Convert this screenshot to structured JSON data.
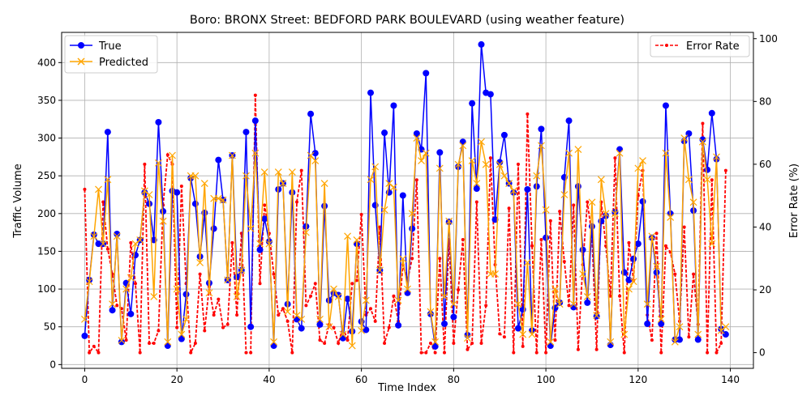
{
  "chart_data": {
    "type": "line",
    "title": "Boro: BRONX Street: BEDFORD PARK BOULEVARD (using weather feature)",
    "xlabel": "Time Index",
    "ylabel": "Traffic Volume",
    "y2label": "Error Rate (%)",
    "xlim": [
      -5,
      145
    ],
    "ylim": [
      -5,
      440
    ],
    "y2lim": [
      -5,
      102
    ],
    "x_ticks": [
      0,
      20,
      40,
      60,
      80,
      100,
      120,
      140
    ],
    "y_ticks": [
      0,
      50,
      100,
      150,
      200,
      250,
      300,
      350,
      400
    ],
    "y2_ticks": [
      0,
      20,
      40,
      60,
      80,
      100
    ],
    "grid": true,
    "legend_left": "top-left",
    "legend_right": "top-right",
    "colors": {
      "true": "#0000ff",
      "predicted": "#ffa500",
      "error": "#ff0000"
    },
    "series": [
      {
        "name": "True",
        "axis": "left",
        "values": [
          38,
          112,
          172,
          160,
          160,
          308,
          72,
          173,
          30,
          108,
          67,
          145,
          165,
          228,
          213,
          165,
          321,
          203,
          25,
          230,
          228,
          34,
          93,
          247,
          213,
          143,
          201,
          108,
          180,
          271,
          218,
          112,
          277,
          116,
          125,
          308,
          50,
          323,
          152,
          193,
          163,
          25,
          232,
          240,
          80,
          228,
          60,
          48,
          183,
          332,
          280,
          53,
          210,
          85,
          95,
          92,
          35,
          87,
          44,
          160,
          57,
          46,
          360,
          211,
          125,
          307,
          228,
          343,
          52,
          224,
          95,
          180,
          306,
          285,
          386,
          67,
          24,
          281,
          54,
          189,
          63,
          262,
          295,
          39,
          346,
          233,
          424,
          360,
          358,
          192,
          268,
          304,
          240,
          228,
          48,
          73,
          232,
          45,
          236,
          312,
          168,
          25,
          75,
          82,
          248,
          323,
          76,
          236,
          152,
          82,
          183,
          64,
          190,
          197,
          26,
          202,
          285,
          122,
          112,
          140,
          160,
          216,
          54,
          168,
          122,
          54,
          343,
          200,
          33,
          33,
          296,
          306,
          204,
          33,
          298,
          258,
          333,
          272,
          47,
          40
        ]
      },
      {
        "name": "Predicted",
        "values": [
          60,
          110,
          170,
          232,
          160,
          245,
          80,
          170,
          32,
          100,
          115,
          160,
          165,
          230,
          225,
          90,
          267,
          190,
          30,
          277,
          100,
          40,
          60,
          250,
          250,
          135,
          240,
          95,
          220,
          220,
          218,
          112,
          277,
          90,
          125,
          250,
          180,
          280,
          160,
          255,
          160,
          30,
          255,
          240,
          70,
          255,
          65,
          60,
          175,
          277,
          270,
          60,
          240,
          50,
          100,
          90,
          40,
          170,
          25,
          165,
          45,
          85,
          245,
          262,
          125,
          205,
          240,
          235,
          85,
          140,
          100,
          200,
          300,
          270,
          280,
          70,
          30,
          260,
          90,
          190,
          80,
          265,
          290,
          35,
          270,
          240,
          295,
          265,
          120,
          120,
          265,
          250,
          240,
          230,
          80,
          40,
          135,
          40,
          250,
          290,
          205,
          30,
          100,
          80,
          225,
          280,
          80,
          285,
          120,
          90,
          215,
          65,
          245,
          200,
          30,
          200,
          280,
          40,
          100,
          110,
          260,
          270,
          80,
          170,
          130,
          60,
          280,
          195,
          30,
          50,
          300,
          245,
          215,
          40,
          295,
          245,
          160,
          275,
          45,
          50
        ]
      },
      {
        "name": "Error Rate",
        "axis": "right",
        "values": [
          52,
          0,
          2,
          0,
          48,
          33,
          25,
          15,
          14,
          4,
          35,
          22,
          0,
          60,
          3,
          3,
          7,
          47,
          63,
          60,
          8,
          53,
          22,
          0,
          3,
          25,
          7,
          21,
          12,
          17,
          8,
          9,
          35,
          12,
          38,
          0,
          0,
          82,
          22,
          47,
          38,
          25,
          12,
          14,
          10,
          0,
          48,
          58,
          15,
          18,
          22,
          4,
          3,
          9,
          8,
          3,
          8,
          4,
          22,
          23,
          44,
          12,
          14,
          10,
          40,
          3,
          8,
          18,
          10,
          28,
          23,
          30,
          55,
          0,
          0,
          3,
          0,
          30,
          0,
          36,
          3,
          20,
          36,
          1,
          3,
          48,
          3,
          15,
          62,
          28,
          6,
          5,
          46,
          0,
          60,
          2,
          76,
          34,
          0,
          36,
          0,
          42,
          4,
          45,
          29,
          15,
          47,
          1,
          28,
          48,
          37,
          1,
          48,
          34,
          18,
          62,
          18,
          0,
          35,
          23,
          50,
          58,
          12,
          4,
          38,
          0,
          34,
          32,
          25,
          10,
          40,
          5,
          25,
          9,
          73,
          0,
          55,
          0,
          3,
          58
        ]
      }
    ]
  }
}
